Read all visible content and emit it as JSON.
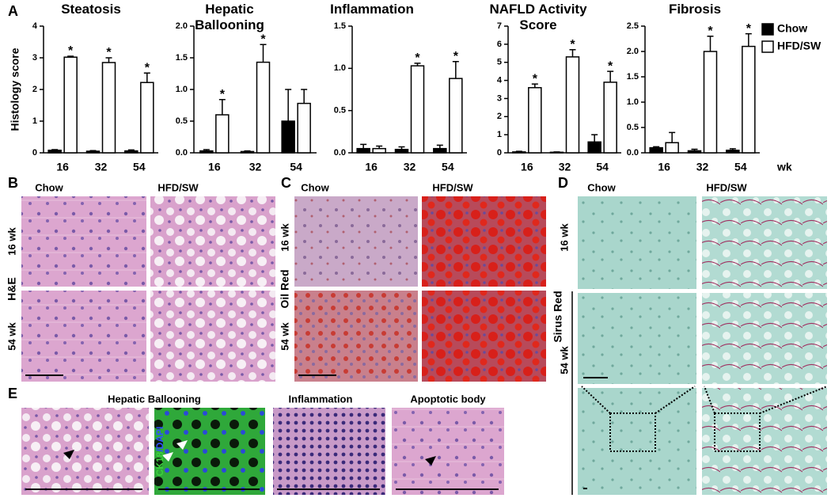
{
  "panel_labels": [
    "A",
    "B",
    "C",
    "D",
    "E"
  ],
  "chart_data": [
    {
      "type": "bar",
      "title": "Steatosis",
      "ylabel": "Histology score",
      "categories": [
        "16",
        "32",
        "54"
      ],
      "ylim": [
        0,
        4
      ],
      "yticks": [
        0,
        1,
        2,
        3,
        4
      ],
      "series": [
        {
          "name": "Chow",
          "color": "#000000",
          "values": [
            0.08,
            0.05,
            0.06
          ],
          "errors": [
            0.02,
            0.02,
            0.03
          ],
          "significance": [
            null,
            null,
            null
          ]
        },
        {
          "name": "HFD/SW",
          "color": "#ffffff",
          "values": [
            3.02,
            2.85,
            2.22
          ],
          "errors": [
            0.03,
            0.15,
            0.3
          ],
          "significance": [
            "*",
            "*",
            "*"
          ]
        }
      ]
    },
    {
      "type": "bar",
      "title": "Hepatic Ballooning",
      "categories": [
        "16",
        "32",
        "54"
      ],
      "ylim": [
        0,
        2
      ],
      "yticks": [
        {
          "value": 0,
          "label": "0.0"
        },
        {
          "value": 0.5,
          "label": "0.5"
        },
        {
          "value": 1,
          "label": "1.0"
        },
        {
          "value": 1.5,
          "label": "1.5"
        },
        {
          "value": 2,
          "label": "2.0"
        }
      ],
      "series": [
        {
          "name": "Chow",
          "color": "#000000",
          "values": [
            0.03,
            0.02,
            0.5
          ],
          "errors": [
            0.02,
            0.01,
            0.5
          ],
          "significance": [
            null,
            null,
            null
          ]
        },
        {
          "name": "HFD/SW",
          "color": "#ffffff",
          "values": [
            0.6,
            1.43,
            0.78
          ],
          "errors": [
            0.24,
            0.28,
            0.22
          ],
          "significance": [
            "*",
            "*",
            null
          ]
        }
      ]
    },
    {
      "type": "bar",
      "title": "Inflammation",
      "categories": [
        "16",
        "32",
        "54"
      ],
      "ylim": [
        0,
        1.5
      ],
      "yticks": [
        {
          "value": 0,
          "label": "0.0"
        },
        {
          "value": 0.5,
          "label": "0.5"
        },
        {
          "value": 1,
          "label": "1.0"
        },
        {
          "value": 1.5,
          "label": "1.5"
        }
      ],
      "series": [
        {
          "name": "Chow",
          "color": "#000000",
          "values": [
            0.05,
            0.04,
            0.05
          ],
          "errors": [
            0.05,
            0.03,
            0.04
          ],
          "significance": [
            null,
            null,
            null
          ]
        },
        {
          "name": "HFD/SW",
          "color": "#ffffff",
          "values": [
            0.05,
            1.03,
            0.88
          ],
          "errors": [
            0.03,
            0.03,
            0.2
          ],
          "significance": [
            null,
            "*",
            "*"
          ]
        }
      ]
    },
    {
      "type": "bar",
      "title": "NAFLD Activity Score",
      "categories": [
        "16",
        "32",
        "54"
      ],
      "ylim": [
        0,
        7
      ],
      "yticks": [
        0,
        1,
        2,
        3,
        4,
        5,
        6,
        7
      ],
      "series": [
        {
          "name": "Chow",
          "color": "#000000",
          "values": [
            0.05,
            0.03,
            0.6
          ],
          "errors": [
            0.03,
            0.02,
            0.4
          ],
          "significance": [
            null,
            null,
            null
          ]
        },
        {
          "name": "HFD/SW",
          "color": "#ffffff",
          "values": [
            3.6,
            5.3,
            3.9
          ],
          "errors": [
            0.2,
            0.4,
            0.6
          ],
          "significance": [
            "*",
            "*",
            "*"
          ]
        }
      ]
    },
    {
      "type": "bar",
      "title": "Fibrosis",
      "xunit": "wk",
      "categories": [
        "16",
        "32",
        "54"
      ],
      "ylim": [
        0,
        2.5
      ],
      "yticks": [
        {
          "value": 0,
          "label": "0.0"
        },
        {
          "value": 0.5,
          "label": "0.5"
        },
        {
          "value": 1,
          "label": "1.0"
        },
        {
          "value": 1.5,
          "label": "1.5"
        },
        {
          "value": 2,
          "label": "2.0"
        },
        {
          "value": 2.5,
          "label": "2.5"
        }
      ],
      "series": [
        {
          "name": "Chow",
          "color": "#000000",
          "values": [
            0.1,
            0.04,
            0.05
          ],
          "errors": [
            0.02,
            0.03,
            0.03
          ],
          "significance": [
            null,
            null,
            null
          ]
        },
        {
          "name": "HFD/SW",
          "color": "#ffffff",
          "values": [
            0.2,
            2.0,
            2.1
          ],
          "errors": [
            0.2,
            0.3,
            0.25
          ],
          "significance": [
            null,
            "*",
            "*"
          ]
        }
      ]
    }
  ],
  "panel_b": {
    "columns": [
      "Chow",
      "HFD/SW"
    ],
    "rows": [
      "16 wk",
      "54 wk"
    ],
    "stain": "H&E"
  },
  "panel_c": {
    "columns": [
      "Chow",
      "HFD/SW"
    ],
    "rows": [
      "16 wk",
      "54 wk"
    ],
    "stain": "Oil Red"
  },
  "panel_d": {
    "columns": [
      "Chow",
      "HFD/SW"
    ],
    "rows": [
      "16 wk",
      "54 wk"
    ],
    "stain": "Sirus Red"
  },
  "panel_e": {
    "titles": [
      "Hepatic Ballooning",
      "Inflammation",
      "Apoptotic body"
    ],
    "stain_label": [
      "CK18",
      "/DAPI"
    ]
  }
}
